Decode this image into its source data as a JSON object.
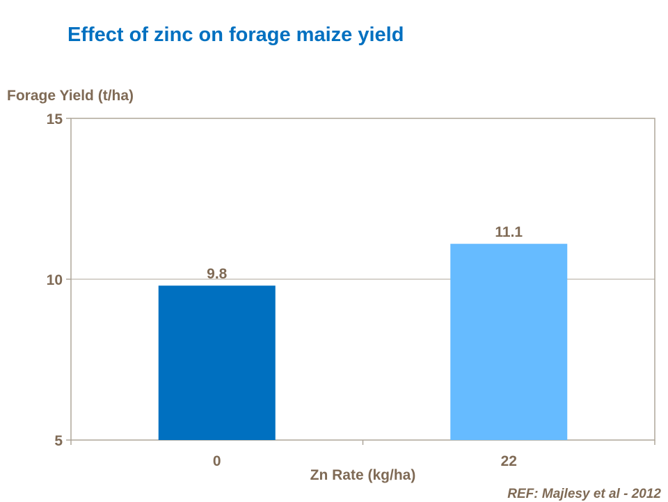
{
  "chart_data": {
    "type": "bar",
    "title": "Effect of zinc on forage maize yield",
    "xlabel": "Zn Rate (kg/ha)",
    "ylabel": "Forage Yield (t/ha)",
    "categories": [
      "0",
      "22"
    ],
    "values": [
      9.8,
      11.1
    ],
    "data_labels": [
      "9.8",
      "11.1"
    ],
    "bar_colors": [
      "#0070C0",
      "#66BBFF"
    ],
    "ylim": [
      5,
      15
    ],
    "yticks": [
      5,
      10,
      15
    ],
    "ytick_labels": [
      "5",
      "10",
      "15"
    ],
    "grid": true,
    "legend": "none",
    "text_color": "#7F6A55",
    "title_color": "#0070C0"
  },
  "reference": "REF: Majlesy et al  - 2012"
}
